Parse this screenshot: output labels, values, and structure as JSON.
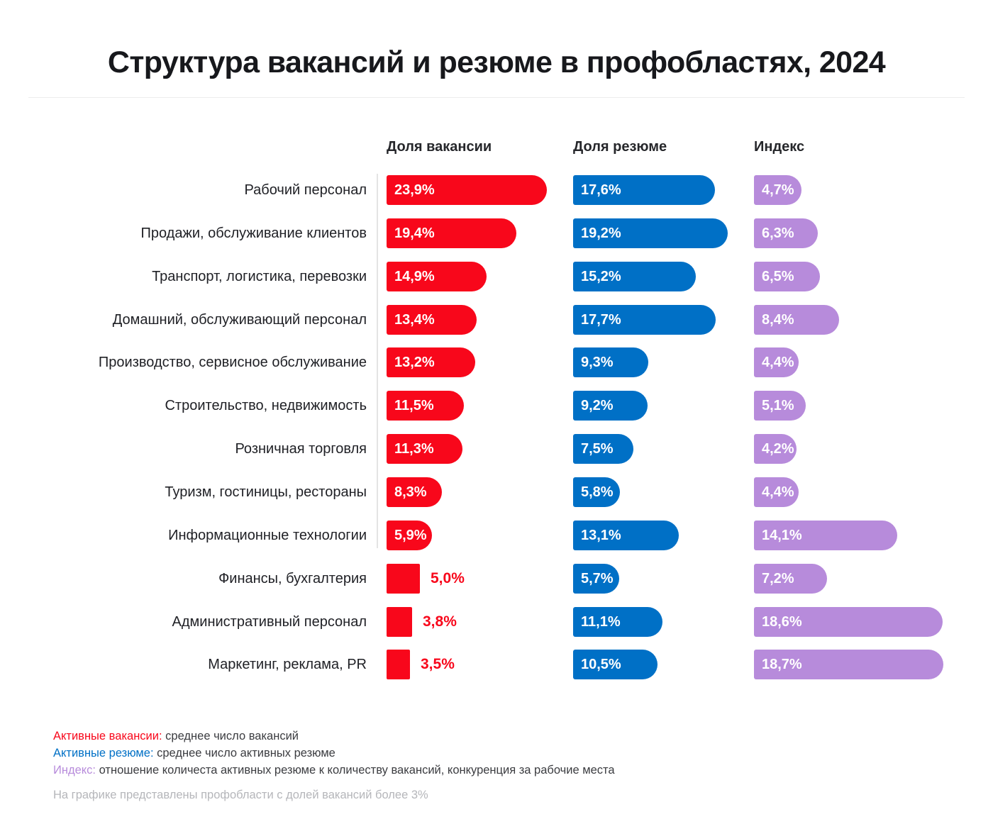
{
  "title": "Структура вакансий и резюме в профобластях, 2024",
  "chart_data": {
    "type": "bar",
    "orientation": "horizontal",
    "title": "Структура вакансий и резюме в профобластях, 2024",
    "categories": [
      "Рабочий персонал",
      "Продажи, обслуживание клиентов",
      "Транспорт, логистика, перевозки",
      "Домашний, обслуживающий персонал",
      "Производство, сервисное обслуживание",
      "Строительство, недвижимость",
      "Розничная торговля",
      "Туризм, гостиницы, рестораны",
      "Информационные технологии",
      "Финансы, бухгалтерия",
      "Административный персонал",
      "Маркетинг, реклама, PR"
    ],
    "series": [
      {
        "name": "Доля вакансии",
        "color": "#f8071b",
        "values": [
          23.9,
          19.4,
          14.9,
          13.4,
          13.2,
          11.5,
          11.3,
          8.3,
          5.9,
          5.0,
          3.8,
          3.5
        ],
        "labels": [
          "23,9%",
          "19,4%",
          "14,9%",
          "13,4%",
          "13,2%",
          "11,5%",
          "11,3%",
          "8,3%",
          "5,9%",
          "5,0%",
          "3,8%",
          "3,5%"
        ]
      },
      {
        "name": "Доля резюме",
        "color": "#0070c6",
        "values": [
          17.6,
          19.2,
          15.2,
          17.7,
          9.3,
          9.2,
          7.5,
          5.8,
          13.1,
          5.7,
          11.1,
          10.5
        ],
        "labels": [
          "17,6%",
          "19,2%",
          "15,2%",
          "17,7%",
          "9,3%",
          "9,2%",
          "7,5%",
          "5,8%",
          "13,1%",
          "5,7%",
          "11,1%",
          "10,5%"
        ]
      },
      {
        "name": "Индекс",
        "color": "#b78bdb",
        "values": [
          4.7,
          6.3,
          6.5,
          8.4,
          4.4,
          5.1,
          4.2,
          4.4,
          14.1,
          7.2,
          18.6,
          18.7
        ],
        "labels": [
          "4,7%",
          "6,3%",
          "6,5%",
          "8,4%",
          "4,4%",
          "5,1%",
          "4,2%",
          "4,4%",
          "14,1%",
          "7,2%",
          "18,6%",
          "18,7%"
        ]
      }
    ],
    "value_suffix": "%",
    "grid": false,
    "legend_position": "bottom-left"
  },
  "legend": [
    {
      "term": "Активные вакансии:",
      "desc": " среднее число вакансий",
      "color": "#f8071b"
    },
    {
      "term": "Активные резюме:",
      "desc": " среднее число активных резюме",
      "color": "#0070c6"
    },
    {
      "term": "Индекс:",
      "desc": " отношение количеста активных резюме к количеству вакансий, конкуренция за рабочие места",
      "color": "#b78bdb"
    }
  ],
  "footnote": "На графике представлены профобласти с долей вакансий более 3%"
}
